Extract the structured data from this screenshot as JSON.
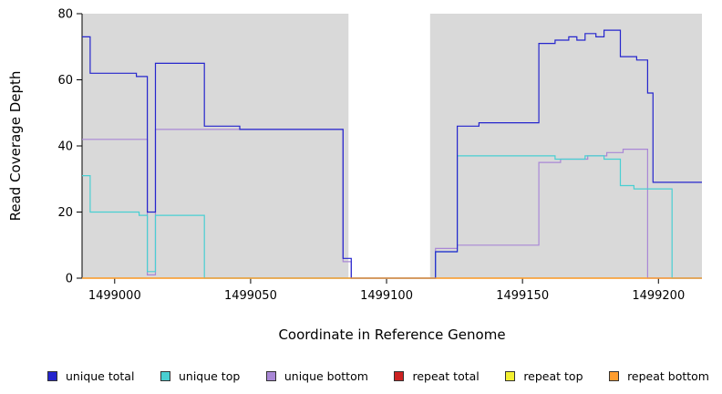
{
  "chart_data": {
    "type": "line",
    "step": true,
    "title": "",
    "xlabel": "Coordinate in Reference Genome",
    "ylabel": "Read Coverage Depth",
    "xlim": [
      1498988,
      1499216
    ],
    "ylim": [
      0,
      80
    ],
    "x_end": 1499216,
    "x_ticks": [
      1499000,
      1499050,
      1499100,
      1499150,
      1499200
    ],
    "y_ticks": [
      0,
      20,
      40,
      60,
      80
    ],
    "grid": false,
    "legend_position": "bottom",
    "background": {
      "plot_fill": "#d9d9d9",
      "gap_region": {
        "x_start": 1499086,
        "x_end": 1499116,
        "fill": "#ffffff"
      }
    },
    "series": [
      {
        "name": "unique total",
        "color": "#2525cd",
        "steps": [
          [
            1498988,
            73
          ],
          [
            1498991,
            62
          ],
          [
            1499008,
            61
          ],
          [
            1499012,
            20
          ],
          [
            1499015,
            65
          ],
          [
            1499033,
            46
          ],
          [
            1499046,
            45
          ],
          [
            1499084,
            6
          ],
          [
            1499087,
            0
          ],
          [
            1499118,
            8
          ],
          [
            1499126,
            46
          ],
          [
            1499134,
            47
          ],
          [
            1499156,
            71
          ],
          [
            1499162,
            72
          ],
          [
            1499167,
            73
          ],
          [
            1499170,
            72
          ],
          [
            1499173,
            74
          ],
          [
            1499177,
            73
          ],
          [
            1499180,
            75
          ],
          [
            1499186,
            67
          ],
          [
            1499192,
            66
          ],
          [
            1499196,
            56
          ],
          [
            1499198,
            29
          ]
        ]
      },
      {
        "name": "unique top",
        "color": "#49cfd2",
        "steps": [
          [
            1498988,
            31
          ],
          [
            1498991,
            20
          ],
          [
            1499009,
            19
          ],
          [
            1499012,
            2
          ],
          [
            1499015,
            19
          ],
          [
            1499033,
            0
          ],
          [
            1499118,
            8
          ],
          [
            1499126,
            37
          ],
          [
            1499162,
            36
          ],
          [
            1499173,
            37
          ],
          [
            1499180,
            36
          ],
          [
            1499186,
            28
          ],
          [
            1499191,
            27
          ],
          [
            1499205,
            0
          ]
        ]
      },
      {
        "name": "unique bottom",
        "color": "#a987d6",
        "steps": [
          [
            1498988,
            42
          ],
          [
            1499012,
            1
          ],
          [
            1499015,
            45
          ],
          [
            1499084,
            5
          ],
          [
            1499087,
            0
          ],
          [
            1499118,
            9
          ],
          [
            1499126,
            10
          ],
          [
            1499156,
            35
          ],
          [
            1499164,
            36
          ],
          [
            1499174,
            37
          ],
          [
            1499181,
            38
          ],
          [
            1499187,
            39
          ],
          [
            1499196,
            0
          ]
        ]
      },
      {
        "name": "repeat total",
        "color": "#cc2222",
        "steps": [
          [
            1498988,
            0
          ]
        ]
      },
      {
        "name": "repeat top",
        "color": "#f2ef30",
        "steps": [
          [
            1498988,
            0
          ]
        ]
      },
      {
        "name": "repeat bottom",
        "color": "#ff9d2e",
        "steps": [
          [
            1498988,
            0
          ]
        ]
      }
    ],
    "draw_order": [
      3,
      4,
      2,
      1,
      0,
      5
    ]
  }
}
